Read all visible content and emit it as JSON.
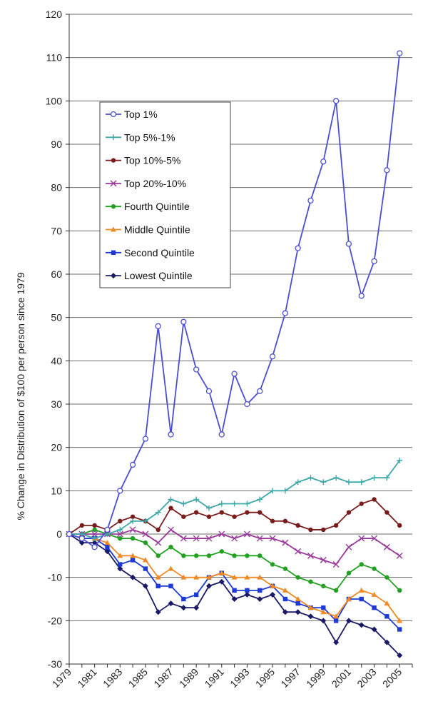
{
  "chart_data": {
    "type": "line",
    "title": "",
    "xlabel": "",
    "ylabel": "% Change in Distribution of $100 per person since 1979",
    "ylim": [
      -30,
      120
    ],
    "yticks": [
      -30,
      -20,
      -10,
      0,
      10,
      20,
      30,
      40,
      50,
      60,
      70,
      80,
      90,
      100,
      110,
      120
    ],
    "x": [
      1979,
      1980,
      1981,
      1982,
      1983,
      1984,
      1985,
      1986,
      1987,
      1988,
      1989,
      1990,
      1991,
      1992,
      1993,
      1994,
      1995,
      1996,
      1997,
      1998,
      1999,
      2000,
      2001,
      2002,
      2003,
      2004,
      2005,
      2006
    ],
    "xtick_labels": [
      "1979",
      "1981",
      "1983",
      "1985",
      "1987",
      "1989",
      "1991",
      "1993",
      "1995",
      "1997",
      "1999",
      "2001",
      "2003",
      "2005"
    ],
    "grid": "horizontal",
    "legend_position": "upper-left",
    "series": [
      {
        "name": "Top 1%",
        "color": "#4a4fd0",
        "marker": "circle-open",
        "values": [
          0,
          -1,
          -3,
          1,
          10,
          16,
          22,
          48,
          23,
          49,
          38,
          33,
          23,
          37,
          30,
          33,
          41,
          51,
          66,
          77,
          86,
          100,
          67,
          55,
          63,
          84,
          111,
          null
        ]
      },
      {
        "name": "Top 5%-1%",
        "color": "#3fa8a8",
        "marker": "plus",
        "values": [
          0,
          0,
          -1,
          0,
          1,
          3,
          3,
          5,
          8,
          7,
          8,
          6,
          7,
          7,
          7,
          8,
          10,
          10,
          12,
          13,
          12,
          13,
          12,
          12,
          13,
          13,
          17,
          null
        ]
      },
      {
        "name": "Top 10%-5%",
        "color": "#7a1c1c",
        "marker": "circle",
        "values": [
          0,
          2,
          2,
          1,
          3,
          4,
          3,
          1,
          6,
          4,
          5,
          4,
          5,
          4,
          5,
          5,
          3,
          3,
          2,
          1,
          1,
          2,
          5,
          7,
          8,
          5,
          2,
          null
        ]
      },
      {
        "name": "Top 20%-10%",
        "color": "#9a3a9a",
        "marker": "x",
        "values": [
          0,
          0,
          0,
          0,
          0,
          1,
          0,
          -2,
          1,
          -1,
          -1,
          -1,
          0,
          -1,
          0,
          -1,
          -1,
          -2,
          -4,
          -5,
          -6,
          -7,
          -3,
          -1,
          -1,
          -3,
          -5,
          null
        ]
      },
      {
        "name": "Fourth Quintile",
        "color": "#22a022",
        "marker": "circle",
        "values": [
          0,
          0,
          1,
          0,
          -1,
          -1,
          -2,
          -5,
          -3,
          -5,
          -5,
          -5,
          -4,
          -5,
          -5,
          -5,
          -7,
          -8,
          -10,
          -11,
          -12,
          -13,
          -9,
          -7,
          -8,
          -10,
          -13,
          null
        ]
      },
      {
        "name": "Middle Quintile",
        "color": "#f08a24",
        "marker": "triangle",
        "values": [
          0,
          0,
          -1,
          -2,
          -5,
          -5,
          -6,
          -10,
          -8,
          -10,
          -10,
          -10,
          -9,
          -10,
          -10,
          -10,
          -12,
          -13,
          -15,
          -17,
          -18,
          -19,
          -15,
          -13,
          -14,
          -16,
          -20,
          null
        ]
      },
      {
        "name": "Second Quintile",
        "color": "#1d3ad6",
        "marker": "square",
        "values": [
          0,
          -1,
          -1,
          -3,
          -7,
          -6,
          -8,
          -12,
          -12,
          -15,
          -14,
          -10,
          -9,
          -13,
          -13,
          -13,
          -12,
          -15,
          -16,
          -17,
          -17,
          -20,
          -15,
          -15,
          -17,
          -19,
          -22,
          null
        ]
      },
      {
        "name": "Lowest Quintile",
        "color": "#1a1a66",
        "marker": "diamond",
        "values": [
          0,
          -2,
          -2,
          -4,
          -8,
          -10,
          -12,
          -18,
          -16,
          -17,
          -17,
          -12,
          -11,
          -15,
          -14,
          -15,
          -14,
          -18,
          -18,
          -19,
          -20,
          -25,
          -20,
          -21,
          -22,
          -25,
          -28,
          null
        ]
      }
    ]
  }
}
